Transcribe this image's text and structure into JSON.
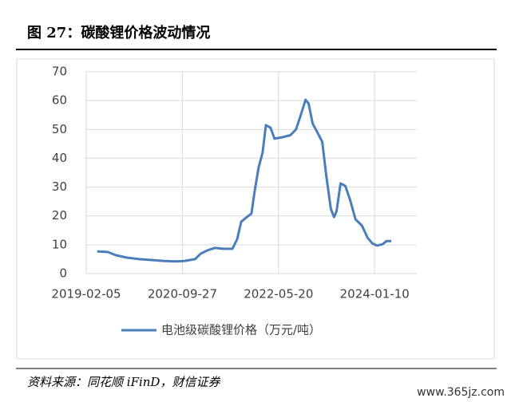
{
  "chart_data": {
    "type": "line",
    "title": "图 27：碳酸锂价格波动情况",
    "source": "资料来源：同花顺 iFinD，财信证券",
    "watermark": "www.365jz.com",
    "x": [
      "2019-04-15",
      "2019-06-19",
      "2019-08-07",
      "2019-10-21",
      "2020-01-03",
      "2020-03-18",
      "2020-05-31",
      "2020-08-13",
      "2020-10-12",
      "2020-12-15",
      "2021-01-19",
      "2021-02-28",
      "2021-04-18",
      "2021-06-07",
      "2021-08-05",
      "2021-09-04",
      "2021-09-29",
      "2021-11-03",
      "2021-12-02",
      "2021-12-22",
      "2022-01-16",
      "2022-02-10",
      "2022-03-02",
      "2022-03-31",
      "2022-04-25",
      "2022-06-14",
      "2022-08-02",
      "2022-09-06",
      "2022-10-06",
      "2022-11-05",
      "2022-11-24",
      "2022-12-19",
      "2023-01-23",
      "2023-02-17",
      "2023-03-14",
      "2023-04-12",
      "2023-05-02",
      "2023-05-17",
      "2023-06-11",
      "2023-07-11",
      "2023-08-09",
      "2023-09-13",
      "2023-10-23",
      "2023-11-26",
      "2023-12-26",
      "2024-01-25",
      "2024-02-29",
      "2024-03-24",
      "2024-04-23"
    ],
    "series": [
      {
        "name": "电池级碳酸锂价格（万元/吨）",
        "color": "#4a7ebb",
        "values": [
          7.7,
          7.5,
          6.4,
          5.5,
          5.0,
          4.7,
          4.4,
          4.2,
          4.4,
          5.0,
          6.9,
          8.0,
          8.9,
          8.6,
          8.6,
          11.9,
          18,
          19.6,
          20.8,
          28.5,
          36.8,
          42,
          51.5,
          50.6,
          46.8,
          47.3,
          48,
          50,
          55,
          60.3,
          59,
          52,
          48.4,
          45.7,
          34,
          22.4,
          19.6,
          21.6,
          31.3,
          30.4,
          25.7,
          18.8,
          16.6,
          12.5,
          10.5,
          9.7,
          10.2,
          11.3,
          11.3
        ]
      }
    ],
    "xlim": [
      "2019-02-05",
      "2024-09-29"
    ],
    "xticks": [
      "2019-02-05",
      "2020-09-27",
      "2022-05-20",
      "2024-01-10"
    ],
    "ylim": [
      0,
      70
    ],
    "yticks": [
      0,
      10,
      20,
      30,
      40,
      50,
      60,
      70
    ],
    "grid": true,
    "legend": "bottom"
  }
}
